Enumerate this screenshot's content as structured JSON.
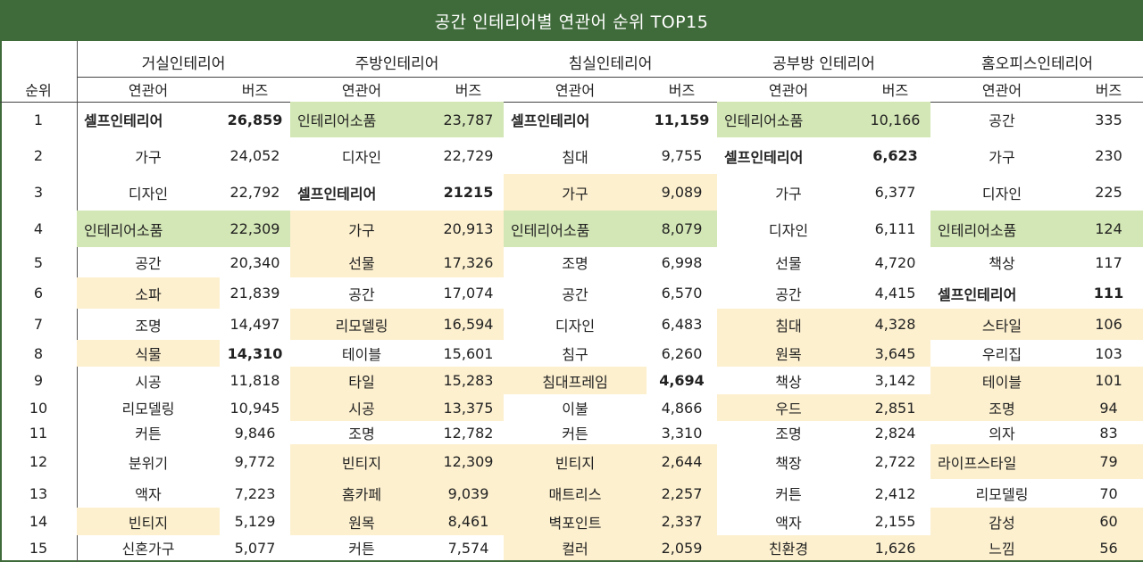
{
  "title": "공간 인테리어별 연관어 순위 TOP15",
  "rank_header": "순위",
  "sub_headers": {
    "word": "연관어",
    "buzz": "버즈"
  },
  "columns": [
    {
      "name": "거실인테리어",
      "rows": [
        {
          "word": "셀프인테리어",
          "buzz": "26,859",
          "hl": "",
          "align": "left",
          "bold": true
        },
        {
          "word": "가구",
          "buzz": "24,052",
          "hl": ""
        },
        {
          "word": "디자인",
          "buzz": "22,792",
          "hl": ""
        },
        {
          "word": "인테리어소품",
          "buzz": "22,309",
          "hl": "green",
          "align": "left"
        },
        {
          "word": "공간",
          "buzz": "20,340",
          "hl": ""
        },
        {
          "word": "소파",
          "buzz": "21,839",
          "hl": "yellow-word"
        },
        {
          "word": "조명",
          "buzz": "14,497",
          "hl": ""
        },
        {
          "word": "식물",
          "buzz": "14,310",
          "hl": "yellow-word",
          "boldbuzz": true
        },
        {
          "word": "시공",
          "buzz": "11,818",
          "hl": ""
        },
        {
          "word": "리모델링",
          "buzz": "10,945",
          "hl": ""
        },
        {
          "word": "커튼",
          "buzz": "9,846",
          "hl": ""
        },
        {
          "word": "분위기",
          "buzz": "9,772",
          "hl": ""
        },
        {
          "word": "액자",
          "buzz": "7,223",
          "hl": ""
        },
        {
          "word": "빈티지",
          "buzz": "5,129",
          "hl": "yellow-word"
        },
        {
          "word": "신혼가구",
          "buzz": "5,077",
          "hl": ""
        }
      ]
    },
    {
      "name": "주방인테리어",
      "rows": [
        {
          "word": "인테리어소품",
          "buzz": "23,787",
          "hl": "green",
          "align": "left"
        },
        {
          "word": "디자인",
          "buzz": "22,729",
          "hl": ""
        },
        {
          "word": "셀프인테리어",
          "buzz": "21215",
          "hl": "",
          "align": "left",
          "bold": true
        },
        {
          "word": "가구",
          "buzz": "20,913",
          "hl": "yellow"
        },
        {
          "word": "선물",
          "buzz": "17,326",
          "hl": "yellow"
        },
        {
          "word": "공간",
          "buzz": "17,074",
          "hl": ""
        },
        {
          "word": "리모델링",
          "buzz": "16,594",
          "hl": "yellow"
        },
        {
          "word": "테이블",
          "buzz": "15,601",
          "hl": ""
        },
        {
          "word": "타일",
          "buzz": "15,283",
          "hl": "yellow"
        },
        {
          "word": "시공",
          "buzz": "13,375",
          "hl": "yellow"
        },
        {
          "word": "조명",
          "buzz": "12,782",
          "hl": ""
        },
        {
          "word": "빈티지",
          "buzz": "12,309",
          "hl": "yellow"
        },
        {
          "word": "홈카페",
          "buzz": "9,039",
          "hl": "yellow"
        },
        {
          "word": "원목",
          "buzz": "8,461",
          "hl": "yellow"
        },
        {
          "word": "커튼",
          "buzz": "7,574",
          "hl": ""
        }
      ]
    },
    {
      "name": "침실인테리어",
      "rows": [
        {
          "word": "셀프인테리어",
          "buzz": "11,159",
          "hl": "",
          "align": "left",
          "bold": true
        },
        {
          "word": "침대",
          "buzz": "9,755",
          "hl": ""
        },
        {
          "word": "가구",
          "buzz": "9,089",
          "hl": "yellow"
        },
        {
          "word": "인테리어소품",
          "buzz": "8,079",
          "hl": "green",
          "align": "left"
        },
        {
          "word": "조명",
          "buzz": "6,998",
          "hl": ""
        },
        {
          "word": "공간",
          "buzz": "6,570",
          "hl": ""
        },
        {
          "word": "디자인",
          "buzz": "6,483",
          "hl": ""
        },
        {
          "word": "침구",
          "buzz": "6,260",
          "hl": ""
        },
        {
          "word": "침대프레임",
          "buzz": "4,694",
          "hl": "yellow-word",
          "boldbuzz": true
        },
        {
          "word": "이불",
          "buzz": "4,866",
          "hl": ""
        },
        {
          "word": "커튼",
          "buzz": "3,310",
          "hl": ""
        },
        {
          "word": "빈티지",
          "buzz": "2,644",
          "hl": "yellow"
        },
        {
          "word": "매트리스",
          "buzz": "2,257",
          "hl": "yellow"
        },
        {
          "word": "벽포인트",
          "buzz": "2,337",
          "hl": "yellow"
        },
        {
          "word": "컬러",
          "buzz": "2,059",
          "hl": "yellow"
        }
      ]
    },
    {
      "name": "공부방 인테리어",
      "rows": [
        {
          "word": "인테리어소품",
          "buzz": "10,166",
          "hl": "green",
          "align": "left"
        },
        {
          "word": "셀프인테리어",
          "buzz": "6,623",
          "hl": "",
          "align": "left",
          "bold": true
        },
        {
          "word": "가구",
          "buzz": "6,377",
          "hl": ""
        },
        {
          "word": "디자인",
          "buzz": "6,111",
          "hl": ""
        },
        {
          "word": "선물",
          "buzz": "4,720",
          "hl": ""
        },
        {
          "word": "공간",
          "buzz": "4,415",
          "hl": ""
        },
        {
          "word": "침대",
          "buzz": "4,328",
          "hl": "yellow"
        },
        {
          "word": "원목",
          "buzz": "3,645",
          "hl": "yellow"
        },
        {
          "word": "책상",
          "buzz": "3,142",
          "hl": ""
        },
        {
          "word": "우드",
          "buzz": "2,851",
          "hl": "yellow"
        },
        {
          "word": "조명",
          "buzz": "2,824",
          "hl": ""
        },
        {
          "word": "책장",
          "buzz": "2,722",
          "hl": ""
        },
        {
          "word": "커튼",
          "buzz": "2,412",
          "hl": ""
        },
        {
          "word": "액자",
          "buzz": "2,155",
          "hl": ""
        },
        {
          "word": "친환경",
          "buzz": "1,626",
          "hl": "yellow"
        }
      ]
    },
    {
      "name": "홈오피스인테리어",
      "rows": [
        {
          "word": "공간",
          "buzz": "335",
          "hl": ""
        },
        {
          "word": "가구",
          "buzz": "230",
          "hl": ""
        },
        {
          "word": "디자인",
          "buzz": "225",
          "hl": ""
        },
        {
          "word": "인테리어소품",
          "buzz": "124",
          "hl": "green",
          "align": "left"
        },
        {
          "word": "책상",
          "buzz": "117",
          "hl": ""
        },
        {
          "word": "셀프인테리어",
          "buzz": "111",
          "hl": "",
          "align": "left",
          "bold": true
        },
        {
          "word": "스타일",
          "buzz": "106",
          "hl": "yellow"
        },
        {
          "word": "우리집",
          "buzz": "103",
          "hl": ""
        },
        {
          "word": "테이블",
          "buzz": "101",
          "hl": "yellow"
        },
        {
          "word": "조명",
          "buzz": "94",
          "hl": "yellow"
        },
        {
          "word": "의자",
          "buzz": "83",
          "hl": ""
        },
        {
          "word": "라이프스타일",
          "buzz": "79",
          "hl": "yellow",
          "align": "left"
        },
        {
          "word": "리모델링",
          "buzz": "70",
          "hl": ""
        },
        {
          "word": "감성",
          "buzz": "60",
          "hl": "yellow"
        },
        {
          "word": "느낌",
          "buzz": "56",
          "hl": "yellow"
        }
      ]
    }
  ],
  "ranks": [
    "1",
    "2",
    "3",
    "4",
    "5",
    "6",
    "7",
    "8",
    "9",
    "10",
    "11",
    "12",
    "13",
    "14",
    "15"
  ]
}
